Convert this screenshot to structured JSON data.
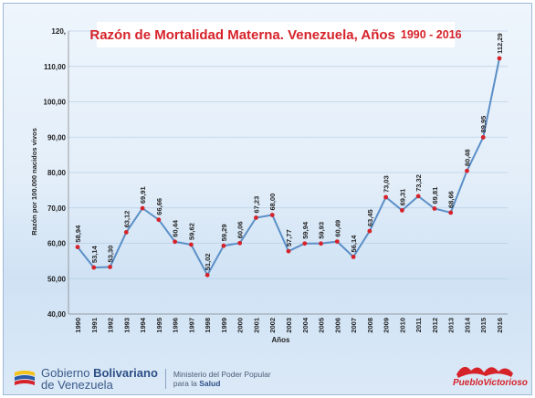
{
  "chart_data": {
    "type": "line",
    "title": "Razón de Mortalidad Materna. Venezuela, Años",
    "title_years": "1990 - 2016",
    "xlabel": "Años",
    "ylabel": "Razón por 100.000 nacidos vivos",
    "ylim": [
      40,
      120
    ],
    "yticks": [
      "40,00",
      "50,00",
      "60,00",
      "70,00",
      "80,00",
      "90,00",
      "100,00",
      "110,00",
      "120,"
    ],
    "x": [
      "1990",
      "1991",
      "1992",
      "1993",
      "1994",
      "1995",
      "1996",
      "1997",
      "1998",
      "1999",
      "2000",
      "2001",
      "2002",
      "2003",
      "2004",
      "2005",
      "2006",
      "2007",
      "2008",
      "2009",
      "2010",
      "2011",
      "2012",
      "2013",
      "2014",
      "2015",
      "2016"
    ],
    "values": [
      58.94,
      53.14,
      53.3,
      63.12,
      69.91,
      66.66,
      60.44,
      59.62,
      51.02,
      59.29,
      60.06,
      67.23,
      68.0,
      57.77,
      59.94,
      59.93,
      60.49,
      56.14,
      63.45,
      73.03,
      69.31,
      73.32,
      69.81,
      68.66,
      80.48,
      89.95,
      112.29
    ],
    "data_labels": [
      "58,94",
      "53,14",
      "53,30",
      "63,12",
      "69,91",
      "66,66",
      "60,44",
      "59,62",
      "51,02",
      "59,29",
      "60,06",
      "67,23",
      "68,00",
      "57,77",
      "59,94",
      "59,93",
      "60,49",
      "56,14",
      "63,45",
      "73,03",
      "69,31",
      "73,32",
      "69,81",
      "68,66",
      "80,48",
      "89,95",
      "112,29"
    ],
    "grid": true,
    "line_color": "#5b8fc7",
    "marker_color": "#d6232a"
  },
  "footer": {
    "gov_line1_a": "Gobierno ",
    "gov_line1_b": "Bolivariano",
    "gov_line2": "de Venezuela",
    "min_line1": "Ministerio del Poder Popular",
    "min_line2_a": "para la ",
    "min_line2_b": "Salud",
    "pv_text": "PuebloVictorioso"
  }
}
